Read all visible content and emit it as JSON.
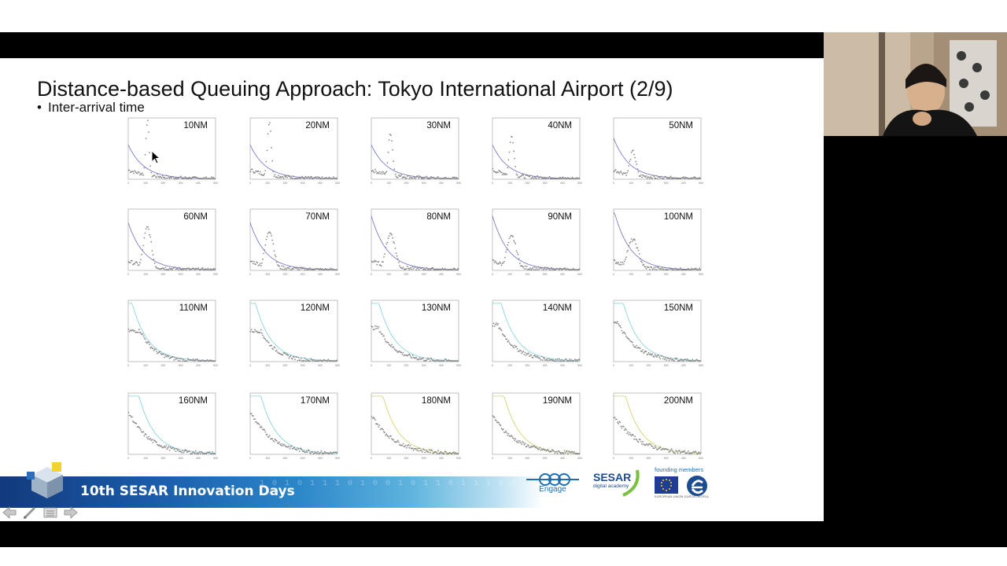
{
  "slide": {
    "title": "Distance-based Queuing Approach: Tokyo International Airport (2/9)",
    "bullet": "Inter-arrival time",
    "bullet_marker": "•"
  },
  "chart_data": {
    "type": "scatter",
    "x_tick_labels": [
      "0",
      "100",
      "200",
      "300",
      "400",
      "500"
    ],
    "xlim": [
      0,
      500
    ],
    "panels": [
      {
        "label": "10NM",
        "peak_x": 110,
        "peak_h": 0.95,
        "width": 14,
        "decay": 0.25
      },
      {
        "label": "20NM",
        "peak_x": 110,
        "peak_h": 0.95,
        "width": 16,
        "decay": 0.25
      },
      {
        "label": "30NM",
        "peak_x": 110,
        "peak_h": 0.75,
        "width": 18,
        "decay": 0.25
      },
      {
        "label": "40NM",
        "peak_x": 110,
        "peak_h": 0.7,
        "width": 20,
        "decay": 0.25
      },
      {
        "label": "50NM",
        "peak_x": 110,
        "peak_h": 0.45,
        "width": 26,
        "decay": 0.3
      },
      {
        "label": "60NM",
        "peak_x": 110,
        "peak_h": 0.7,
        "width": 32,
        "decay": 0.35
      },
      {
        "label": "70NM",
        "peak_x": 110,
        "peak_h": 0.65,
        "width": 34,
        "decay": 0.35
      },
      {
        "label": "80NM",
        "peak_x": 110,
        "peak_h": 0.6,
        "width": 38,
        "decay": 0.4
      },
      {
        "label": "90NM",
        "peak_x": 110,
        "peak_h": 0.55,
        "width": 40,
        "decay": 0.4
      },
      {
        "label": "100NM",
        "peak_x": 110,
        "peak_h": 0.5,
        "width": 45,
        "decay": 0.45
      },
      {
        "label": "110NM",
        "peak_x": 70,
        "peak_h": 0.5,
        "width": 60,
        "decay": 0.55
      },
      {
        "label": "120NM",
        "peak_x": 60,
        "peak_h": 0.5,
        "width": 65,
        "decay": 0.6
      },
      {
        "label": "130NM",
        "peak_x": 40,
        "peak_h": 0.55,
        "width": 70,
        "decay": 0.7
      },
      {
        "label": "140NM",
        "peak_x": 30,
        "peak_h": 0.6,
        "width": 75,
        "decay": 0.75
      },
      {
        "label": "150NM",
        "peak_x": 20,
        "peak_h": 0.65,
        "width": 80,
        "decay": 0.8
      },
      {
        "label": "160NM",
        "peak_x": 10,
        "peak_h": 0.65,
        "width": 85,
        "decay": 0.85
      },
      {
        "label": "170NM",
        "peak_x": 10,
        "peak_h": 0.65,
        "width": 90,
        "decay": 0.85
      },
      {
        "label": "180NM",
        "peak_x": 10,
        "peak_h": 0.6,
        "width": 92,
        "decay": 0.9
      },
      {
        "label": "190NM",
        "peak_x": 10,
        "peak_h": 0.6,
        "width": 95,
        "decay": 0.9
      },
      {
        "label": "200NM",
        "peak_x": 10,
        "peak_h": 0.6,
        "width": 98,
        "decay": 0.92
      }
    ]
  },
  "banner": {
    "title": "10th SESAR Innovation Days",
    "digits": "1 0 1 0 1 1 1 0 1 0 0 1 0 1 1 0 1 1 1 0 1",
    "engage": "Engage",
    "sesar": "SESAR",
    "sesar_sub": "digital academy",
    "founding": "founding members",
    "eu_sub": "EUROPEAN UNION",
    "eurocontrol_sub": "EUROCONTROL"
  },
  "colors": {
    "scatter": "#8a8a8a",
    "fit_line": "#6d6fc4",
    "fit_line_alt": "#7fd0d8",
    "fit_line_yellow": "#cfcf6a"
  },
  "icons": {
    "nav_prev": "arrow-left-icon",
    "nav_pen": "pen-icon",
    "nav_menu": "menu-icon",
    "nav_next": "arrow-right-icon"
  }
}
